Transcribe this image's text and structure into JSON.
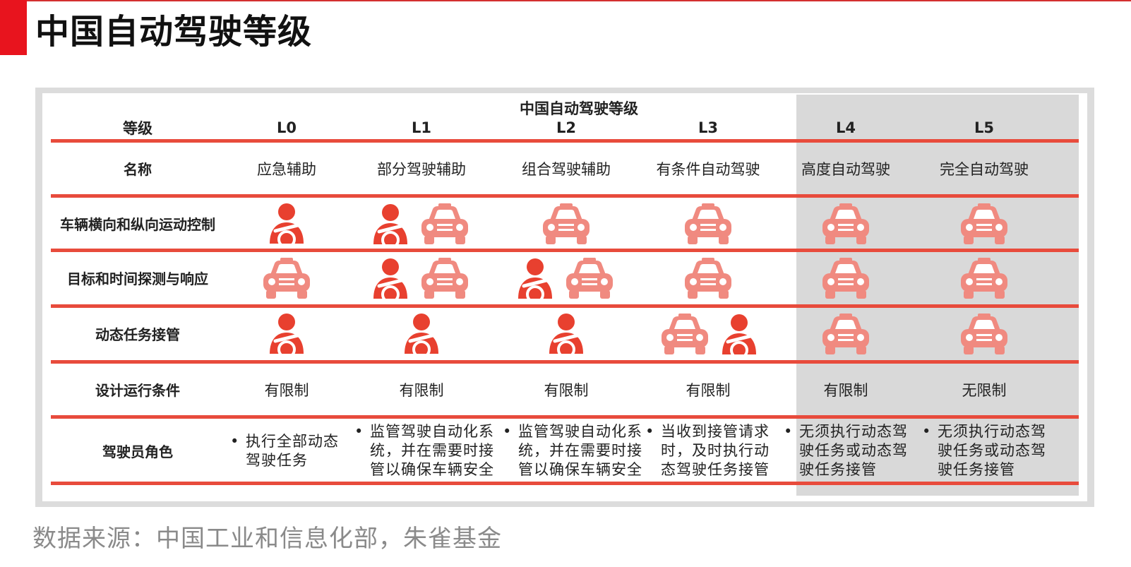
{
  "page_title": "中国自动驾驶等级",
  "table": {
    "caption": "中国自动驾驶等级",
    "header_label": "等级",
    "levels": [
      "L0",
      "L1",
      "L2",
      "L3",
      "L4",
      "L5"
    ],
    "name_label": "名称",
    "names": [
      "应急辅助",
      "部分驾驶辅助",
      "组合驾驶辅助",
      "有条件自动驾驶",
      "高度自动驾驶",
      "完全自动驾驶"
    ],
    "rows": [
      {
        "label": "车辆横向和纵向运动控制",
        "icons": [
          [
            "driver-icon"
          ],
          [
            "driver-icon",
            "car-icon"
          ],
          [
            "car-icon"
          ],
          [
            "car-icon"
          ],
          [
            "car-icon"
          ],
          [
            "car-icon"
          ]
        ]
      },
      {
        "label": "目标和时间探测与响应",
        "icons": [
          [
            "car-icon"
          ],
          [
            "driver-icon",
            "car-icon"
          ],
          [
            "driver-icon",
            "car-icon"
          ],
          [
            "car-icon"
          ],
          [
            "car-icon"
          ],
          [
            "car-icon"
          ]
        ]
      },
      {
        "label": "动态任务接管",
        "icons": [
          [
            "driver-icon"
          ],
          [
            "driver-icon"
          ],
          [
            "driver-icon"
          ],
          [
            "car-icon",
            "driver-icon"
          ],
          [
            "car-icon"
          ],
          [
            "car-icon"
          ]
        ]
      }
    ],
    "odd_label": "设计运行条件",
    "odd_values": [
      "有限制",
      "有限制",
      "有限制",
      "有限制",
      "有限制",
      "无限制"
    ],
    "role_label": "驾驶员角色",
    "bullet": "•",
    "roles": [
      [
        "执行全部动态",
        "驾驶任务"
      ],
      [
        "监管驾驶自动化系",
        "统，并在需要时接",
        "管以确保车辆安全"
      ],
      [
        "监管驾驶自动化系",
        "统，并在需要时接",
        "管以确保车辆安全"
      ],
      [
        "当收到接管请求",
        "时，及时执行动",
        "态驾驶任务接管"
      ],
      [
        "无须执行动态驾",
        "驶任务或动态驾",
        "驶任务接管"
      ],
      [
        "无须执行动态驾",
        "驶任务或动态驾",
        "驶任务接管"
      ]
    ],
    "highlighted_levels": [
      "L4",
      "L5"
    ]
  },
  "colors": {
    "accent": "#e8141e",
    "rule": "#e84b3c",
    "driver": "#e8402f",
    "car": "#f08a80",
    "highlight_bg": "#d9d9d9"
  },
  "source": "数据来源：中国工业和信息化部，朱雀基金"
}
